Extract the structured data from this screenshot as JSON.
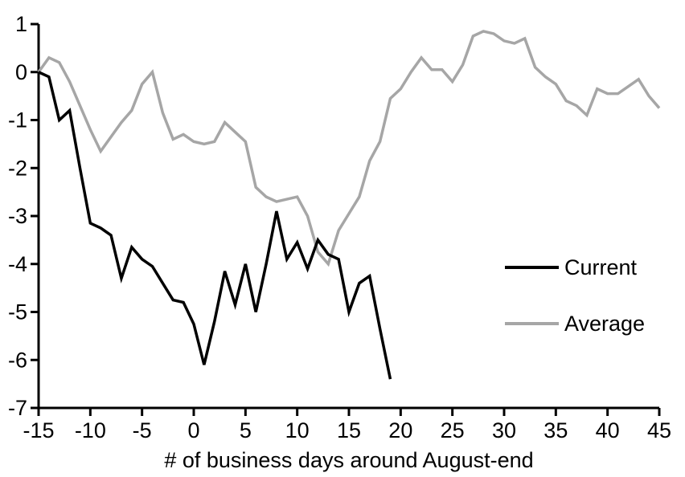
{
  "chart_data": {
    "type": "line",
    "title": "",
    "xlabel": "# of business days around August-end",
    "ylabel": "",
    "xlim": [
      -15,
      45
    ],
    "ylim": [
      -7,
      1
    ],
    "xticks": [
      -15,
      -10,
      -5,
      0,
      5,
      10,
      15,
      20,
      25,
      30,
      35,
      40,
      45
    ],
    "yticks": [
      1,
      0,
      -1,
      -2,
      -3,
      -4,
      -5,
      -6,
      -7
    ],
    "grid": false,
    "legend_position": "right-middle",
    "axis_color": "#000000",
    "background_color": "#ffffff",
    "series": [
      {
        "name": "Current",
        "color": "#000000",
        "x_start": -15,
        "x_step": 1,
        "values": [
          0,
          -0.1,
          -1.0,
          -0.8,
          -2.0,
          -3.15,
          -3.25,
          -3.4,
          -4.3,
          -3.65,
          -3.9,
          -4.05,
          -4.4,
          -4.75,
          -4.8,
          -5.25,
          -6.1,
          -5.2,
          -4.15,
          -4.85,
          -4.0,
          -5.0,
          -4.0,
          -2.9,
          -3.9,
          -3.55,
          -4.1,
          -3.5,
          -3.8,
          -3.9,
          -5.0,
          -4.4,
          -4.25,
          -5.35,
          -6.4
        ]
      },
      {
        "name": "Average",
        "color": "#a6a6a6",
        "x_start": -15,
        "x_step": 1,
        "values": [
          0,
          0.3,
          0.2,
          -0.2,
          -0.7,
          -1.2,
          -1.65,
          -1.35,
          -1.05,
          -0.8,
          -0.25,
          0.0,
          -0.85,
          -1.4,
          -1.3,
          -1.45,
          -1.5,
          -1.45,
          -1.05,
          -1.25,
          -1.45,
          -2.4,
          -2.6,
          -2.7,
          -2.65,
          -2.6,
          -3.0,
          -3.75,
          -4.0,
          -3.3,
          -2.95,
          -2.6,
          -1.85,
          -1.45,
          -0.55,
          -0.35,
          0.0,
          0.3,
          0.05,
          0.05,
          -0.2,
          0.15,
          0.75,
          0.85,
          0.8,
          0.65,
          0.6,
          0.7,
          0.1,
          -0.1,
          -0.25,
          -0.6,
          -0.7,
          -0.9,
          -0.35,
          -0.45,
          -0.45,
          -0.3,
          -0.15,
          -0.5,
          -0.75
        ]
      }
    ]
  }
}
